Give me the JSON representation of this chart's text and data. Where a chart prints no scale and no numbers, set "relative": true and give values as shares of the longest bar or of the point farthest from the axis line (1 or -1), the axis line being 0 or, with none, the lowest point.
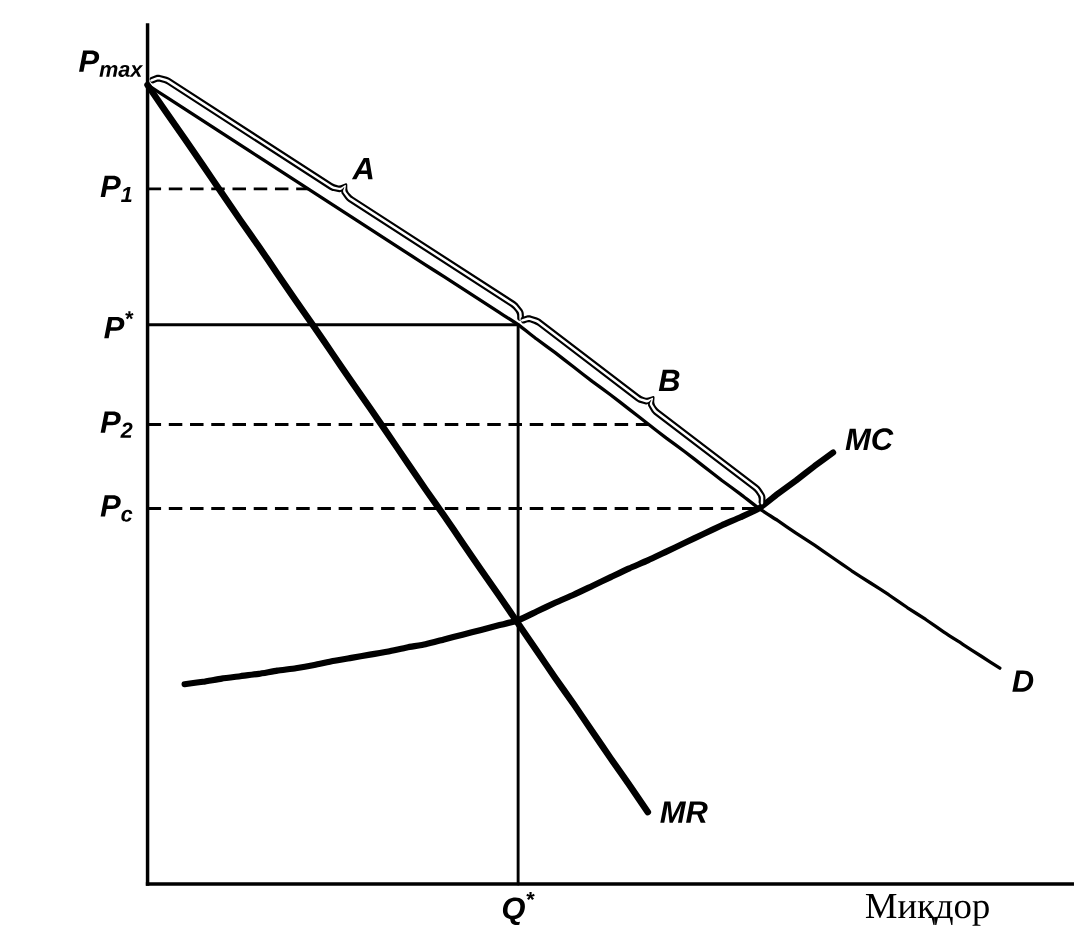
{
  "chart_data": {
    "type": "line",
    "relative": true,
    "xlabel": "Миқдор",
    "marker": "none",
    "categories": [
      null,
      null,
      null,
      null,
      null,
      null,
      null,
      null,
      null,
      null,
      null,
      null,
      null,
      null,
      null,
      null,
      null,
      null,
      null,
      null,
      null,
      null,
      null,
      null,
      null,
      null,
      null,
      null,
      null,
      null,
      null,
      null,
      null,
      null,
      null,
      null,
      null,
      null,
      null,
      null,
      null,
      null,
      null,
      null,
      null,
      null,
      null
    ],
    "series": [
      {
        "name": "D",
        "color": "#000000",
        "values": [
          1.0,
          0.985,
          0.97,
          0.955,
          0.94,
          0.925,
          0.91,
          0.895,
          0.88,
          0.865,
          0.85,
          0.835,
          0.82,
          0.805,
          0.79,
          0.775,
          0.76,
          0.745,
          0.73,
          0.715,
          0.7,
          0.682,
          0.665,
          0.647,
          0.629,
          0.612,
          0.594,
          0.576,
          0.558,
          0.541,
          0.523,
          0.505,
          0.488,
          0.47,
          0.455,
          0.439,
          0.424,
          0.408,
          0.392,
          0.377,
          0.362,
          0.346,
          0.331,
          0.315,
          0.3,
          0.285,
          0.27
        ]
      },
      {
        "name": "MR",
        "color": "#000000",
        "values": [
          1.0,
          0.966,
          0.933,
          0.899,
          0.865,
          0.831,
          0.798,
          0.764,
          0.73,
          0.697,
          0.663,
          0.629,
          0.596,
          0.562,
          0.528,
          0.494,
          0.461,
          0.427,
          0.393,
          0.36,
          0.326,
          0.292,
          0.258,
          0.225,
          0.191,
          0.157,
          0.124,
          0.09,
          null,
          null,
          null,
          null,
          null,
          null,
          null,
          null,
          null,
          null,
          null,
          null,
          null,
          null,
          null,
          null,
          null,
          null,
          null
        ]
      },
      {
        "name": "MC",
        "color": "#000000",
        "values": [
          null,
          null,
          0.25,
          0.253,
          0.257,
          0.26,
          0.263,
          0.267,
          0.27,
          0.274,
          0.279,
          0.283,
          0.287,
          0.291,
          0.296,
          0.3,
          0.306,
          0.312,
          0.318,
          0.324,
          0.33,
          0.341,
          0.352,
          0.362,
          0.373,
          0.384,
          0.395,
          0.405,
          0.416,
          0.427,
          0.438,
          0.449,
          0.459,
          0.47,
          0.488,
          0.505,
          0.523,
          0.54,
          null,
          null,
          null,
          null,
          null,
          null,
          null,
          null,
          null
        ]
      }
    ],
    "ref_lines": [
      {
        "axis": "y",
        "value": 0.87,
        "label": "P$_{1}$",
        "line_style": "dashed"
      },
      {
        "axis": "y",
        "value": 0.7,
        "label": "P$^{*}$",
        "line_style": "solid"
      },
      {
        "axis": "y",
        "value": 0.575,
        "label": "P$_{2}$",
        "line_style": "dashed"
      },
      {
        "axis": "y",
        "value": 0.47,
        "label": "P$_{c}$",
        "line_style": "dashed"
      }
    ],
    "annotations": [
      "P$_{max}$",
      "Q$^{*}$",
      "A",
      "B"
    ]
  }
}
